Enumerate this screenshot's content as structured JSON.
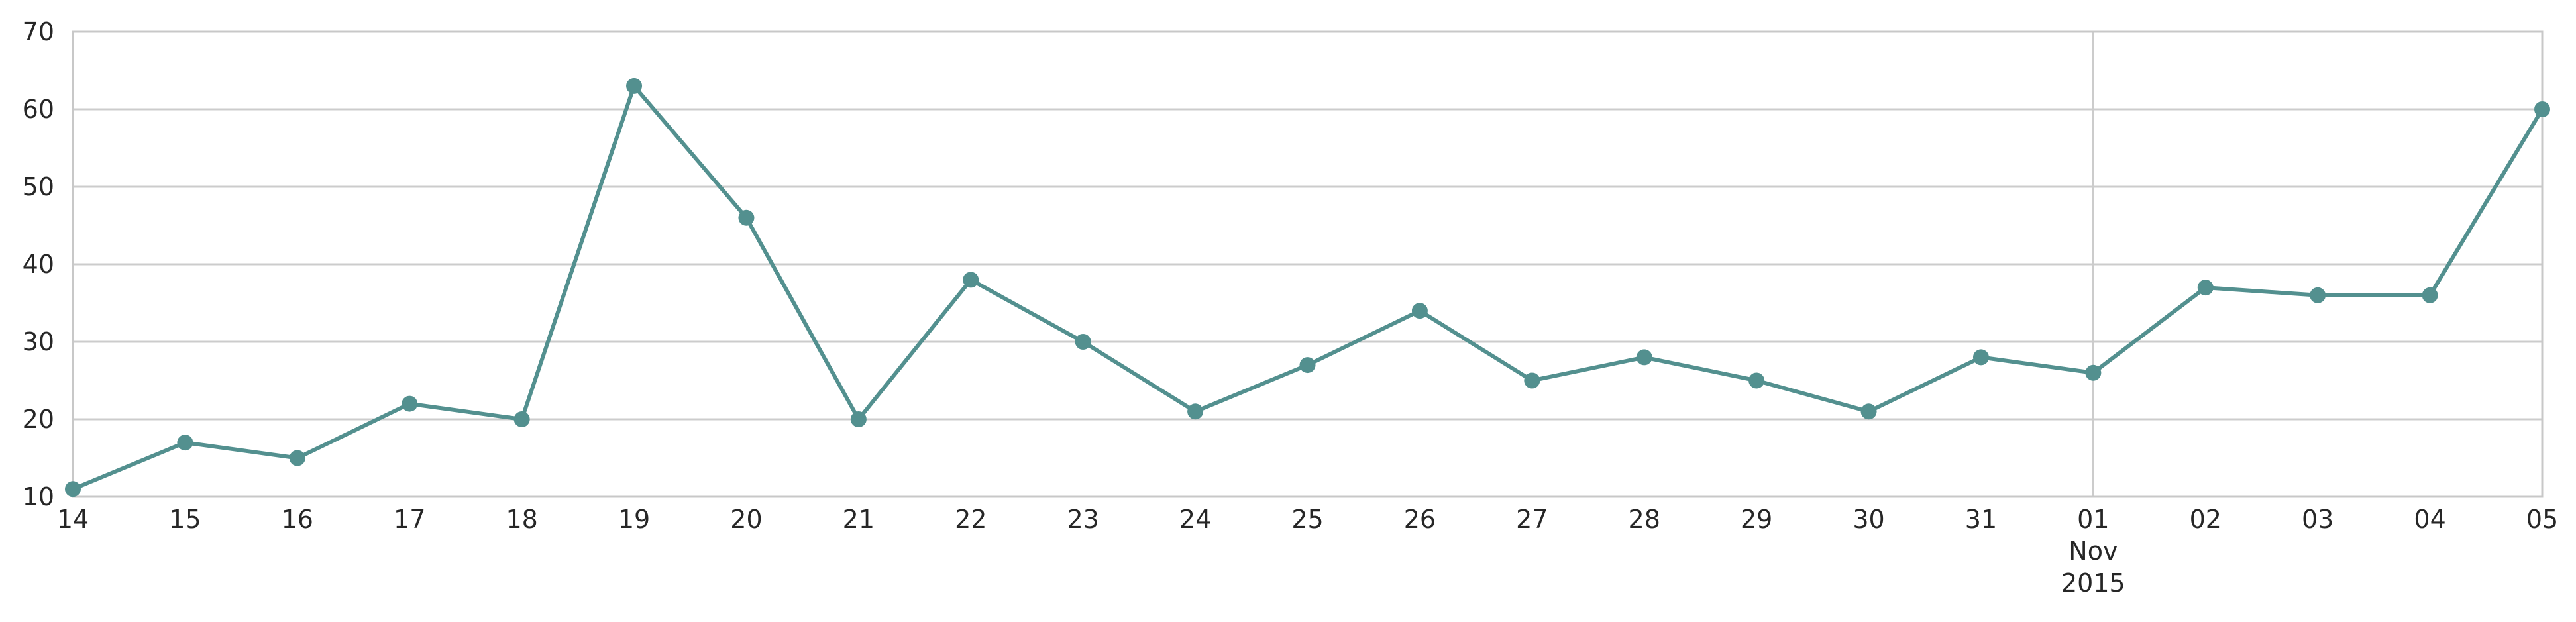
{
  "chart_data": {
    "type": "line",
    "x": [
      "2015-10-14",
      "2015-10-15",
      "2015-10-16",
      "2015-10-17",
      "2015-10-18",
      "2015-10-19",
      "2015-10-20",
      "2015-10-21",
      "2015-10-22",
      "2015-10-23",
      "2015-10-24",
      "2015-10-25",
      "2015-10-26",
      "2015-10-27",
      "2015-10-28",
      "2015-10-29",
      "2015-10-30",
      "2015-10-31",
      "2015-11-01",
      "2015-11-02",
      "2015-11-03",
      "2015-11-04",
      "2015-11-05"
    ],
    "values": [
      11,
      17,
      15,
      22,
      20,
      63,
      46,
      20,
      38,
      30,
      21,
      27,
      34,
      25,
      28,
      25,
      21,
      28,
      26,
      37,
      36,
      36,
      60
    ],
    "x_tick_labels": [
      [
        "14"
      ],
      [
        "15"
      ],
      [
        "16"
      ],
      [
        "17"
      ],
      [
        "18"
      ],
      [
        "19"
      ],
      [
        "20"
      ],
      [
        "21"
      ],
      [
        "22"
      ],
      [
        "23"
      ],
      [
        "24"
      ],
      [
        "25"
      ],
      [
        "26"
      ],
      [
        "27"
      ],
      [
        "28"
      ],
      [
        "29"
      ],
      [
        "30"
      ],
      [
        "31"
      ],
      [
        "01",
        "Nov",
        "2015"
      ],
      [
        "02"
      ],
      [
        "03"
      ],
      [
        "04"
      ],
      [
        "05"
      ]
    ],
    "ylim": [
      10,
      70
    ],
    "yticks": [
      10,
      20,
      30,
      40,
      50,
      60,
      70
    ],
    "grid": true,
    "title": "",
    "xlabel": "",
    "ylabel": "",
    "line_color": "#53908f",
    "marker_color": "#53908f",
    "grid_color": "#cccccc"
  }
}
